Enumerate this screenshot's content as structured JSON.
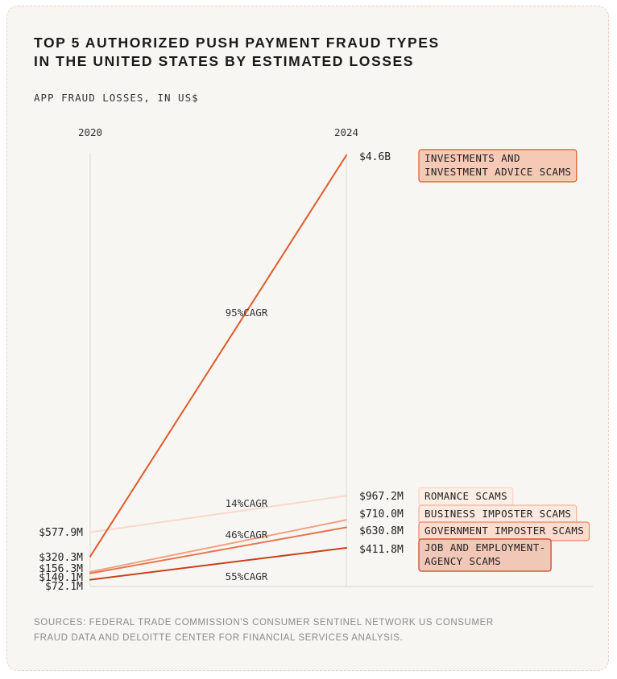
{
  "header": {
    "title_line1": "TOP 5 AUTHORIZED PUSH PAYMENT FRAUD TYPES",
    "title_line2": "IN THE UNITED STATES BY ESTIMATED LOSSES",
    "subtitle": "APP FRAUD LOSSES, IN US$"
  },
  "footer": {
    "sources_line1": "SOURCES: FEDERAL TRADE COMMISSION'S CONSUMER SENTINEL NETWORK US CONSUMER",
    "sources_line2": "FRAUD DATA AND DELOITTE CENTER FOR FINANCIAL SERVICES ANALYSIS."
  },
  "chart_data": {
    "type": "line",
    "title": "TOP 5 AUTHORIZED PUSH PAYMENT FRAUD TYPES IN THE UNITED STATES BY ESTIMATED LOSSES",
    "ylabel": "APP FRAUD LOSSES, IN US$",
    "x": [
      "2020",
      "2024"
    ],
    "unit": "US$ millions",
    "ylim": [
      0,
      4600
    ],
    "series": [
      {
        "name": "INVESTMENTS AND INVESTMENT ADVICE SCAMS",
        "name_lines": [
          "INVESTMENTS AND",
          "INVESTMENT ADVICE SCAMS"
        ],
        "values": [
          320.3,
          4600
        ],
        "start_label": "$320.3M",
        "end_label": "$4.6B",
        "cagr": "95%CAGR",
        "color": "#e05a2b",
        "label_bg": "#f6c8b6",
        "label_border": "#e05a2b"
      },
      {
        "name": "ROMANCE SCAMS",
        "name_lines": [
          "ROMANCE SCAMS"
        ],
        "values": [
          577.9,
          967.2
        ],
        "start_label": "$577.9M",
        "end_label": "$967.2M",
        "cagr": "14%CAGR",
        "color": "#fbd8c8",
        "label_bg": "#fdeee6",
        "label_border": "#fbd3c2"
      },
      {
        "name": "BUSINESS IMPOSTER SCAMS",
        "name_lines": [
          "BUSINESS IMPOSTER SCAMS"
        ],
        "values": [
          156.3,
          710.0
        ],
        "start_label": "$156.3M",
        "end_label": "$710.0M",
        "cagr": "46%CAGR",
        "color": "#f2a282",
        "label_bg": "#fde9df",
        "label_border": "#f4b299"
      },
      {
        "name": "GOVERNMENT IMPOSTER SCAMS",
        "name_lines": [
          "GOVERNMENT IMPOSTER SCAMS"
        ],
        "values": [
          140.1,
          630.8
        ],
        "start_label": "$140.1M",
        "end_label": "$630.8M",
        "cagr": "",
        "color": "#e8764f",
        "label_bg": "#fbdccf",
        "label_border": "#ea8563"
      },
      {
        "name": "JOB AND EMPLOYMENT-AGENCY SCAMS",
        "name_lines": [
          "JOB AND EMPLOYMENT-",
          "AGENCY SCAMS"
        ],
        "values": [
          72.1,
          411.8
        ],
        "start_label": "$72.1M",
        "end_label": "$411.8M",
        "cagr": "55%CAGR",
        "color": "#c9401c",
        "label_bg": "#f1c8b8",
        "label_border": "#c9401c"
      }
    ]
  }
}
